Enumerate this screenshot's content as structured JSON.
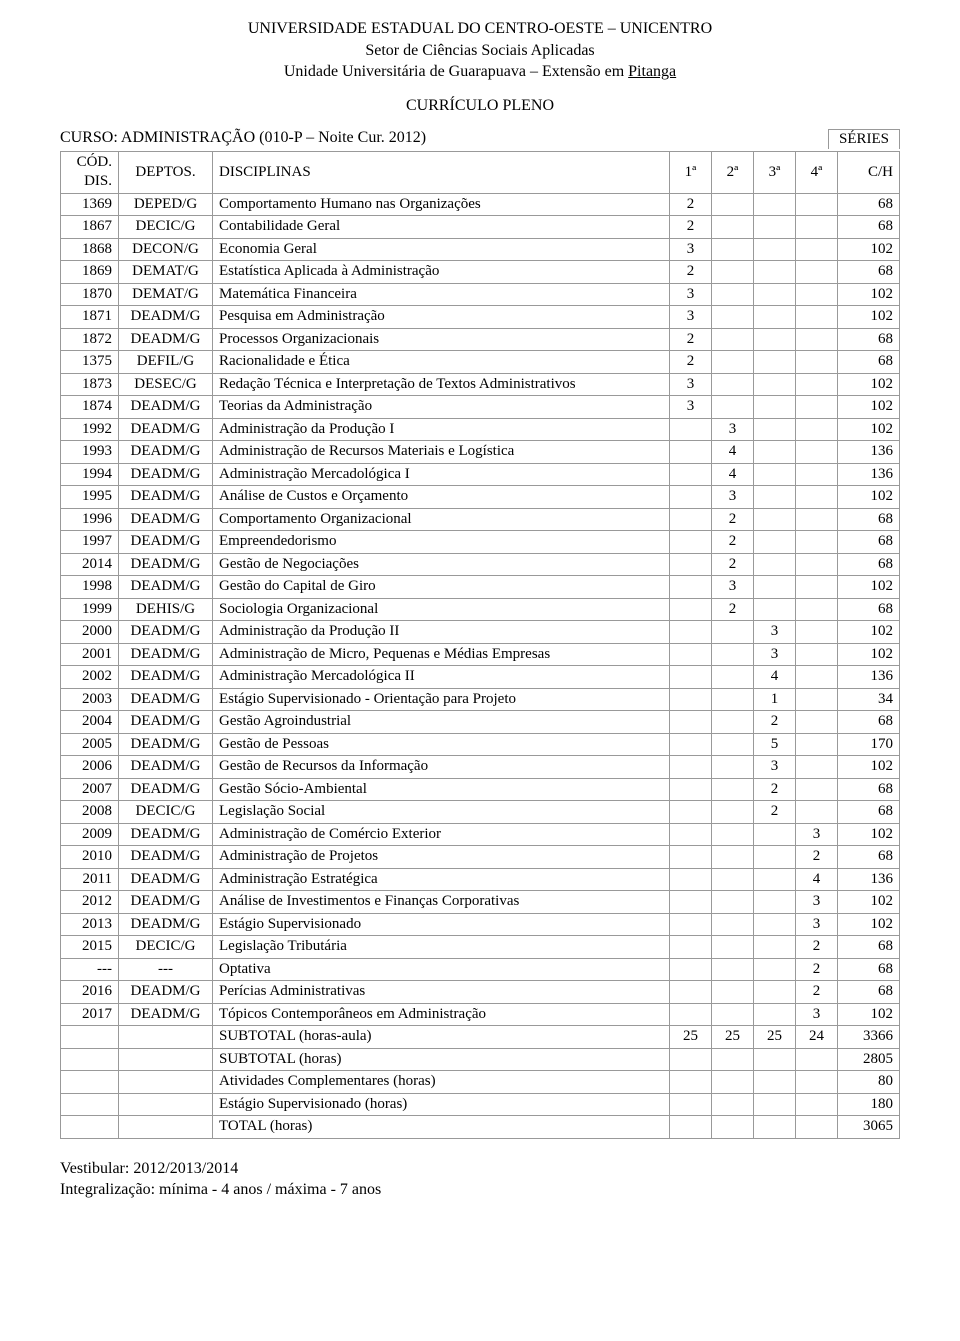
{
  "header": {
    "line1": "UNIVERSIDADE ESTADUAL DO CENTRO-OESTE – UNICENTRO",
    "line2": "Setor de Ciências Sociais Aplicadas",
    "line3_prefix": "Unidade Universitária de Guarapuava – Extensão em ",
    "line3_link": "Pitanga",
    "title": "CURRÍCULO PLENO",
    "course": "CURSO: ADMINISTRAÇÃO (010-P – Noite Cur. 2012)",
    "series_label": "SÉRIES"
  },
  "columns": {
    "cod": "CÓD. DIS.",
    "dep": "DEPTOS.",
    "dis": "DISCIPLINAS",
    "s1": "1ª",
    "s2": "2ª",
    "s3": "3ª",
    "s4": "4ª",
    "ch": "C/H"
  },
  "rows": [
    {
      "cod": "1369",
      "dep": "DEPED/G",
      "dis": "Comportamento Humano nas Organizações",
      "s1": "2",
      "s2": "",
      "s3": "",
      "s4": "",
      "ch": "68"
    },
    {
      "cod": "1867",
      "dep": "DECIC/G",
      "dis": "Contabilidade Geral",
      "s1": "2",
      "s2": "",
      "s3": "",
      "s4": "",
      "ch": "68"
    },
    {
      "cod": "1868",
      "dep": "DECON/G",
      "dis": "Economia Geral",
      "s1": "3",
      "s2": "",
      "s3": "",
      "s4": "",
      "ch": "102"
    },
    {
      "cod": "1869",
      "dep": "DEMAT/G",
      "dis": "Estatística Aplicada à Administração",
      "s1": "2",
      "s2": "",
      "s3": "",
      "s4": "",
      "ch": "68"
    },
    {
      "cod": "1870",
      "dep": "DEMAT/G",
      "dis": "Matemática Financeira",
      "s1": "3",
      "s2": "",
      "s3": "",
      "s4": "",
      "ch": "102"
    },
    {
      "cod": "1871",
      "dep": "DEADM/G",
      "dis": "Pesquisa em Administração",
      "s1": "3",
      "s2": "",
      "s3": "",
      "s4": "",
      "ch": "102"
    },
    {
      "cod": "1872",
      "dep": "DEADM/G",
      "dis": "Processos Organizacionais",
      "s1": "2",
      "s2": "",
      "s3": "",
      "s4": "",
      "ch": "68"
    },
    {
      "cod": "1375",
      "dep": "DEFIL/G",
      "dis": "Racionalidade e Ética",
      "s1": "2",
      "s2": "",
      "s3": "",
      "s4": "",
      "ch": "68"
    },
    {
      "cod": "1873",
      "dep": "DESEC/G",
      "dis": "Redação Técnica e Interpretação de Textos Administrativos",
      "s1": "3",
      "s2": "",
      "s3": "",
      "s4": "",
      "ch": "102"
    },
    {
      "cod": "1874",
      "dep": "DEADM/G",
      "dis": "Teorias da Administração",
      "s1": "3",
      "s2": "",
      "s3": "",
      "s4": "",
      "ch": "102"
    },
    {
      "cod": "1992",
      "dep": "DEADM/G",
      "dis": "Administração da Produção I",
      "s1": "",
      "s2": "3",
      "s3": "",
      "s4": "",
      "ch": "102"
    },
    {
      "cod": "1993",
      "dep": "DEADM/G",
      "dis": "Administração de Recursos Materiais e Logística",
      "s1": "",
      "s2": "4",
      "s3": "",
      "s4": "",
      "ch": "136"
    },
    {
      "cod": "1994",
      "dep": "DEADM/G",
      "dis": "Administração Mercadológica I",
      "s1": "",
      "s2": "4",
      "s3": "",
      "s4": "",
      "ch": "136"
    },
    {
      "cod": "1995",
      "dep": "DEADM/G",
      "dis": "Análise de Custos e Orçamento",
      "s1": "",
      "s2": "3",
      "s3": "",
      "s4": "",
      "ch": "102"
    },
    {
      "cod": "1996",
      "dep": "DEADM/G",
      "dis": "Comportamento Organizacional",
      "s1": "",
      "s2": "2",
      "s3": "",
      "s4": "",
      "ch": "68"
    },
    {
      "cod": "1997",
      "dep": "DEADM/G",
      "dis": "Empreendedorismo",
      "s1": "",
      "s2": "2",
      "s3": "",
      "s4": "",
      "ch": "68"
    },
    {
      "cod": "2014",
      "dep": "DEADM/G",
      "dis": "Gestão de Negociações",
      "s1": "",
      "s2": "2",
      "s3": "",
      "s4": "",
      "ch": "68"
    },
    {
      "cod": "1998",
      "dep": "DEADM/G",
      "dis": "Gestão do Capital de Giro",
      "s1": "",
      "s2": "3",
      "s3": "",
      "s4": "",
      "ch": "102"
    },
    {
      "cod": "1999",
      "dep": "DEHIS/G",
      "dis": "Sociologia Organizacional",
      "s1": "",
      "s2": "2",
      "s3": "",
      "s4": "",
      "ch": "68"
    },
    {
      "cod": "2000",
      "dep": "DEADM/G",
      "dis": "Administração da Produção II",
      "s1": "",
      "s2": "",
      "s3": "3",
      "s4": "",
      "ch": "102"
    },
    {
      "cod": "2001",
      "dep": "DEADM/G",
      "dis": "Administração de Micro, Pequenas e Médias Empresas",
      "s1": "",
      "s2": "",
      "s3": "3",
      "s4": "",
      "ch": "102"
    },
    {
      "cod": "2002",
      "dep": "DEADM/G",
      "dis": "Administração Mercadológica II",
      "s1": "",
      "s2": "",
      "s3": "4",
      "s4": "",
      "ch": "136"
    },
    {
      "cod": "2003",
      "dep": "DEADM/G",
      "dis": "Estágio Supervisionado - Orientação para Projeto",
      "s1": "",
      "s2": "",
      "s3": "1",
      "s4": "",
      "ch": "34"
    },
    {
      "cod": "2004",
      "dep": "DEADM/G",
      "dis": "Gestão Agroindustrial",
      "s1": "",
      "s2": "",
      "s3": "2",
      "s4": "",
      "ch": "68"
    },
    {
      "cod": "2005",
      "dep": "DEADM/G",
      "dis": "Gestão de Pessoas",
      "s1": "",
      "s2": "",
      "s3": "5",
      "s4": "",
      "ch": "170"
    },
    {
      "cod": "2006",
      "dep": "DEADM/G",
      "dis": "Gestão de Recursos da Informação",
      "s1": "",
      "s2": "",
      "s3": "3",
      "s4": "",
      "ch": "102"
    },
    {
      "cod": "2007",
      "dep": "DEADM/G",
      "dis": "Gestão Sócio-Ambiental",
      "s1": "",
      "s2": "",
      "s3": "2",
      "s4": "",
      "ch": "68"
    },
    {
      "cod": "2008",
      "dep": "DECIC/G",
      "dis": "Legislação Social",
      "s1": "",
      "s2": "",
      "s3": "2",
      "s4": "",
      "ch": "68"
    },
    {
      "cod": "2009",
      "dep": "DEADM/G",
      "dis": "Administração de Comércio Exterior",
      "s1": "",
      "s2": "",
      "s3": "",
      "s4": "3",
      "ch": "102"
    },
    {
      "cod": "2010",
      "dep": "DEADM/G",
      "dis": "Administração de Projetos",
      "s1": "",
      "s2": "",
      "s3": "",
      "s4": "2",
      "ch": "68"
    },
    {
      "cod": "2011",
      "dep": "DEADM/G",
      "dis": "Administração Estratégica",
      "s1": "",
      "s2": "",
      "s3": "",
      "s4": "4",
      "ch": "136"
    },
    {
      "cod": "2012",
      "dep": "DEADM/G",
      "dis": "Análise de Investimentos e Finanças Corporativas",
      "s1": "",
      "s2": "",
      "s3": "",
      "s4": "3",
      "ch": "102"
    },
    {
      "cod": "2013",
      "dep": "DEADM/G",
      "dis": "Estágio Supervisionado",
      "s1": "",
      "s2": "",
      "s3": "",
      "s4": "3",
      "ch": "102"
    },
    {
      "cod": "2015",
      "dep": "DECIC/G",
      "dis": "Legislação Tributária",
      "s1": "",
      "s2": "",
      "s3": "",
      "s4": "2",
      "ch": "68"
    },
    {
      "cod": "---",
      "dep": "---",
      "dis": "Optativa",
      "s1": "",
      "s2": "",
      "s3": "",
      "s4": "2",
      "ch": "68"
    },
    {
      "cod": "2016",
      "dep": "DEADM/G",
      "dis": "Perícias Administrativas",
      "s1": "",
      "s2": "",
      "s3": "",
      "s4": "2",
      "ch": "68"
    },
    {
      "cod": "2017",
      "dep": "DEADM/G",
      "dis": "Tópicos Contemporâneos em Administração",
      "s1": "",
      "s2": "",
      "s3": "",
      "s4": "3",
      "ch": "102"
    },
    {
      "cod": "",
      "dep": "",
      "dis": "SUBTOTAL (horas-aula)",
      "s1": "25",
      "s2": "25",
      "s3": "25",
      "s4": "24",
      "ch": "3366"
    },
    {
      "cod": "",
      "dep": "",
      "dis": "SUBTOTAL (horas)",
      "s1": "",
      "s2": "",
      "s3": "",
      "s4": "",
      "ch": "2805"
    },
    {
      "cod": "",
      "dep": "",
      "dis": "Atividades Complementares (horas)",
      "s1": "",
      "s2": "",
      "s3": "",
      "s4": "",
      "ch": "80"
    },
    {
      "cod": "",
      "dep": "",
      "dis": "Estágio Supervisionado (horas)",
      "s1": "",
      "s2": "",
      "s3": "",
      "s4": "",
      "ch": "180"
    },
    {
      "cod": "",
      "dep": "",
      "dis": "TOTAL (horas)",
      "s1": "",
      "s2": "",
      "s3": "",
      "s4": "",
      "ch": "3065"
    }
  ],
  "footer": {
    "line1": "Vestibular: 2012/2013/2014",
    "line2": "Integralização: mínima - 4 anos / máxima - 7 anos"
  },
  "style": {
    "border_color": "#999999",
    "background": "#ffffff",
    "text_color": "#000000",
    "font_family": "Times New Roman",
    "body_fontsize": 16,
    "table_fontsize": 15
  }
}
